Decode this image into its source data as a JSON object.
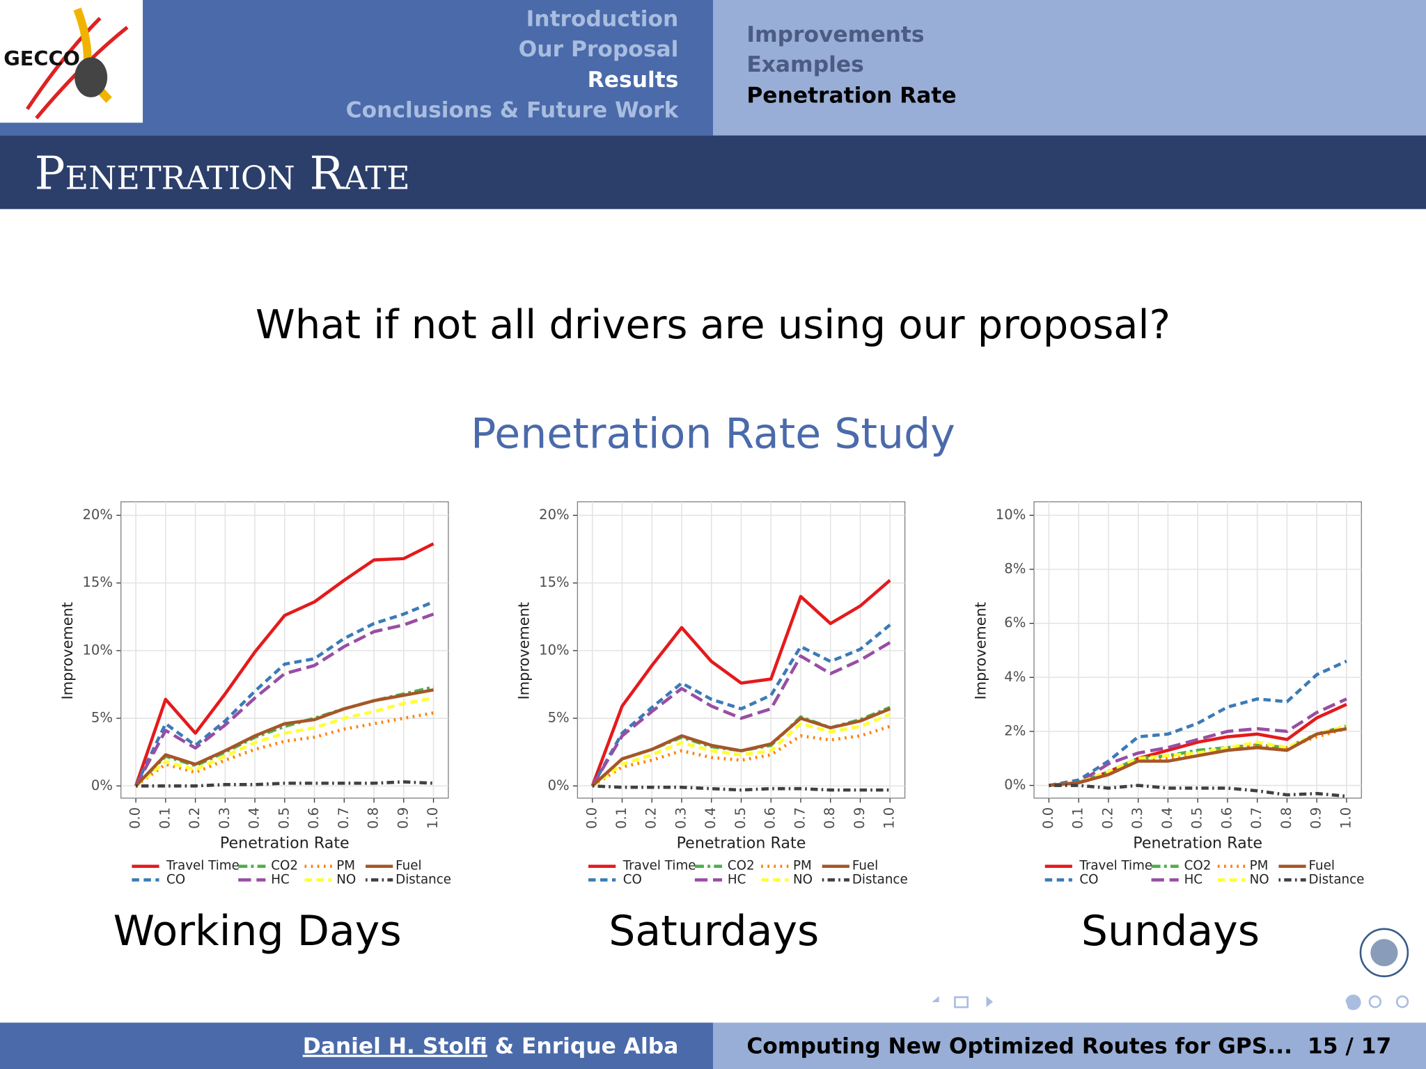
{
  "header": {
    "logo_text": "GECCO",
    "sections": [
      "Introduction",
      "Our Proposal",
      "Results",
      "Conclusions & Future Work"
    ],
    "subsections": [
      "Improvements",
      "Examples",
      "Penetration Rate"
    ],
    "frame_title": "Penetration Rate"
  },
  "question": "What if not all drivers are using our proposal?",
  "subtitle": "Penetration Rate Study",
  "chart_data": [
    {
      "type": "line",
      "caption": "Working Days",
      "xlabel": "Penetration Rate",
      "ylabel": "Improvement",
      "x": [
        0,
        0.1,
        0.2,
        0.3,
        0.4,
        0.5,
        0.6,
        0.7,
        0.8,
        0.9,
        1
      ],
      "xlim": [
        -0.05,
        1.05
      ],
      "xticks": [
        {
          "value": 0,
          "label": "0.0"
        },
        0.1,
        0.2,
        0.3,
        0.4,
        0.5,
        0.6,
        0.7,
        0.8,
        0.9,
        {
          "value": 1,
          "label": "1.0"
        }
      ],
      "ylim": [
        -0.9,
        21
      ],
      "yticks": [
        {
          "value": 0,
          "label": "0%"
        },
        {
          "value": 5,
          "label": "5%"
        },
        {
          "value": 10,
          "label": "10%"
        },
        {
          "value": 15,
          "label": "15%"
        },
        {
          "value": 20,
          "label": "20%"
        }
      ],
      "grid": true,
      "legend": "bottom",
      "series": [
        {
          "name": "Travel Time",
          "color": "#e41a1c",
          "linestyle": "solid",
          "values": [
            0,
            6.4,
            3.9,
            6.8,
            9.9,
            12.6,
            13.6,
            15.2,
            16.7,
            16.8,
            17.9
          ]
        },
        {
          "name": "CO",
          "color": "#3b7bb6",
          "linestyle": "dashed",
          "values": [
            0,
            4.6,
            3.0,
            4.8,
            7.0,
            9.0,
            9.4,
            10.9,
            12.0,
            12.7,
            13.6
          ]
        },
        {
          "name": "CO2",
          "color": "#4daf4a",
          "linestyle": "twodash",
          "values": [
            0,
            2.2,
            1.5,
            2.5,
            3.6,
            4.4,
            5.0,
            5.7,
            6.3,
            6.8,
            7.3
          ]
        },
        {
          "name": "HC",
          "color": "#984ea3",
          "linestyle": "longdash",
          "values": [
            0,
            4.1,
            2.8,
            4.5,
            6.5,
            8.3,
            8.9,
            10.3,
            11.4,
            11.9,
            12.7
          ]
        },
        {
          "name": "PM",
          "color": "#ff7f00",
          "linestyle": "dotted",
          "values": [
            0,
            1.6,
            1.0,
            1.9,
            2.7,
            3.3,
            3.6,
            4.2,
            4.6,
            5.0,
            5.4
          ]
        },
        {
          "name": "NO",
          "color": "#ffff33",
          "linestyle": "dashed",
          "values": [
            0,
            1.8,
            1.2,
            2.2,
            3.2,
            3.9,
            4.3,
            5.0,
            5.5,
            6.1,
            6.5
          ]
        },
        {
          "name": "Fuel",
          "color": "#a65628",
          "linestyle": "solid",
          "values": [
            0,
            2.3,
            1.6,
            2.6,
            3.7,
            4.6,
            4.9,
            5.7,
            6.3,
            6.7,
            7.1
          ]
        },
        {
          "name": "Distance",
          "color": "#404040",
          "linestyle": "dotdash",
          "values": [
            0,
            0,
            0,
            0.1,
            0.1,
            0.2,
            0.2,
            0.2,
            0.2,
            0.3,
            0.2
          ]
        }
      ]
    },
    {
      "type": "line",
      "caption": "Saturdays",
      "xlabel": "Penetration Rate",
      "ylabel": "Improvement",
      "x": [
        0,
        0.1,
        0.2,
        0.3,
        0.4,
        0.5,
        0.6,
        0.7,
        0.8,
        0.9,
        1
      ],
      "xlim": [
        -0.05,
        1.05
      ],
      "xticks": [
        {
          "value": 0,
          "label": "0.0"
        },
        0.1,
        0.2,
        0.3,
        0.4,
        0.5,
        0.6,
        0.7,
        0.8,
        0.9,
        {
          "value": 1,
          "label": "1.0"
        }
      ],
      "ylim": [
        -0.9,
        21
      ],
      "yticks": [
        {
          "value": 0,
          "label": "0%"
        },
        {
          "value": 5,
          "label": "5%"
        },
        {
          "value": 10,
          "label": "10%"
        },
        {
          "value": 15,
          "label": "15%"
        },
        {
          "value": 20,
          "label": "20%"
        }
      ],
      "grid": true,
      "legend": "bottom",
      "series": [
        {
          "name": "Travel Time",
          "color": "#e41a1c",
          "linestyle": "solid",
          "values": [
            0,
            5.9,
            8.9,
            11.7,
            9.2,
            7.6,
            7.9,
            14.0,
            12.0,
            13.3,
            15.2
          ]
        },
        {
          "name": "CO",
          "color": "#3b7bb6",
          "linestyle": "dashed",
          "values": [
            0,
            3.9,
            5.8,
            7.6,
            6.4,
            5.7,
            6.7,
            10.3,
            9.2,
            10.1,
            11.9
          ]
        },
        {
          "name": "CO2",
          "color": "#4daf4a",
          "linestyle": "twodash",
          "values": [
            0,
            2.0,
            2.7,
            3.6,
            2.9,
            2.6,
            3.0,
            5.1,
            4.3,
            4.9,
            5.8
          ]
        },
        {
          "name": "HC",
          "color": "#984ea3",
          "linestyle": "longdash",
          "values": [
            0,
            3.7,
            5.5,
            7.2,
            5.9,
            5.0,
            5.7,
            9.6,
            8.3,
            9.3,
            10.6
          ]
        },
        {
          "name": "PM",
          "color": "#ff7f00",
          "linestyle": "dotted",
          "values": [
            0,
            1.4,
            1.9,
            2.6,
            2.1,
            1.9,
            2.3,
            3.7,
            3.4,
            3.7,
            4.4
          ]
        },
        {
          "name": "NO",
          "color": "#ffff33",
          "linestyle": "dashed",
          "values": [
            0,
            1.6,
            2.3,
            3.2,
            2.6,
            2.3,
            2.6,
            4.6,
            4.0,
            4.4,
            5.3
          ]
        },
        {
          "name": "Fuel",
          "color": "#a65628",
          "linestyle": "solid",
          "values": [
            0,
            2.0,
            2.7,
            3.7,
            3.0,
            2.6,
            3.1,
            5.0,
            4.3,
            4.8,
            5.7
          ]
        },
        {
          "name": "Distance",
          "color": "#404040",
          "linestyle": "dotdash",
          "values": [
            0,
            -0.1,
            -0.1,
            -0.1,
            -0.2,
            -0.3,
            -0.2,
            -0.2,
            -0.3,
            -0.3,
            -0.3
          ]
        }
      ]
    },
    {
      "type": "line",
      "caption": "Sundays",
      "xlabel": "Penetration Rate",
      "ylabel": "Improvement",
      "x": [
        0,
        0.1,
        0.2,
        0.3,
        0.4,
        0.5,
        0.6,
        0.7,
        0.8,
        0.9,
        1
      ],
      "xlim": [
        -0.05,
        1.05
      ],
      "xticks": [
        {
          "value": 0,
          "label": "0.0"
        },
        0.1,
        0.2,
        0.3,
        0.4,
        0.5,
        0.6,
        0.7,
        0.8,
        0.9,
        {
          "value": 1,
          "label": "1.0"
        }
      ],
      "ylim": [
        -0.47,
        10.5
      ],
      "yticks": [
        {
          "value": 0,
          "label": "0%"
        },
        {
          "value": 2,
          "label": "2%"
        },
        {
          "value": 4,
          "label": "4%"
        },
        {
          "value": 6,
          "label": "6%"
        },
        {
          "value": 8,
          "label": "8%"
        },
        {
          "value": 10,
          "label": "10%"
        }
      ],
      "grid": true,
      "legend": "bottom",
      "series": [
        {
          "name": "Travel Time",
          "color": "#e41a1c",
          "linestyle": "solid",
          "values": [
            0,
            0.1,
            0.5,
            1.0,
            1.3,
            1.6,
            1.8,
            1.9,
            1.7,
            2.5,
            3.0
          ]
        },
        {
          "name": "CO",
          "color": "#3b7bb6",
          "linestyle": "dashed",
          "values": [
            0,
            0.2,
            0.9,
            1.8,
            1.9,
            2.3,
            2.9,
            3.2,
            3.1,
            4.1,
            4.6
          ]
        },
        {
          "name": "CO2",
          "color": "#4daf4a",
          "linestyle": "twodash",
          "values": [
            0,
            0.1,
            0.5,
            1.0,
            1.1,
            1.3,
            1.4,
            1.5,
            1.4,
            1.9,
            2.2
          ]
        },
        {
          "name": "HC",
          "color": "#984ea3",
          "linestyle": "longdash",
          "values": [
            0,
            0.1,
            0.8,
            1.2,
            1.4,
            1.7,
            2.0,
            2.1,
            2.0,
            2.7,
            3.2
          ]
        },
        {
          "name": "PM",
          "color": "#ff7f00",
          "linestyle": "dotted",
          "values": [
            0,
            0.1,
            0.4,
            0.9,
            1.0,
            1.2,
            1.3,
            1.5,
            1.4,
            1.8,
            2.1
          ]
        },
        {
          "name": "NO",
          "color": "#ffff33",
          "linestyle": "dashed",
          "values": [
            0,
            0.1,
            0.5,
            1.0,
            1.1,
            1.2,
            1.4,
            1.6,
            1.4,
            1.9,
            2.2
          ]
        },
        {
          "name": "Fuel",
          "color": "#a65628",
          "linestyle": "solid",
          "values": [
            0,
            0.1,
            0.4,
            0.9,
            0.9,
            1.1,
            1.3,
            1.4,
            1.3,
            1.9,
            2.1
          ]
        },
        {
          "name": "Distance",
          "color": "#404040",
          "linestyle": "dotdash",
          "values": [
            0,
            0,
            -0.1,
            0,
            -0.1,
            -0.1,
            -0.1,
            -0.2,
            -0.35,
            -0.3,
            -0.4
          ]
        }
      ]
    }
  ],
  "footer": {
    "author_first": "Daniel H. Stolfi",
    "author_rest": "& Enrique Alba",
    "talk_title": "Computing New Optimized Routes for GPS...",
    "page": "15 / 17"
  }
}
